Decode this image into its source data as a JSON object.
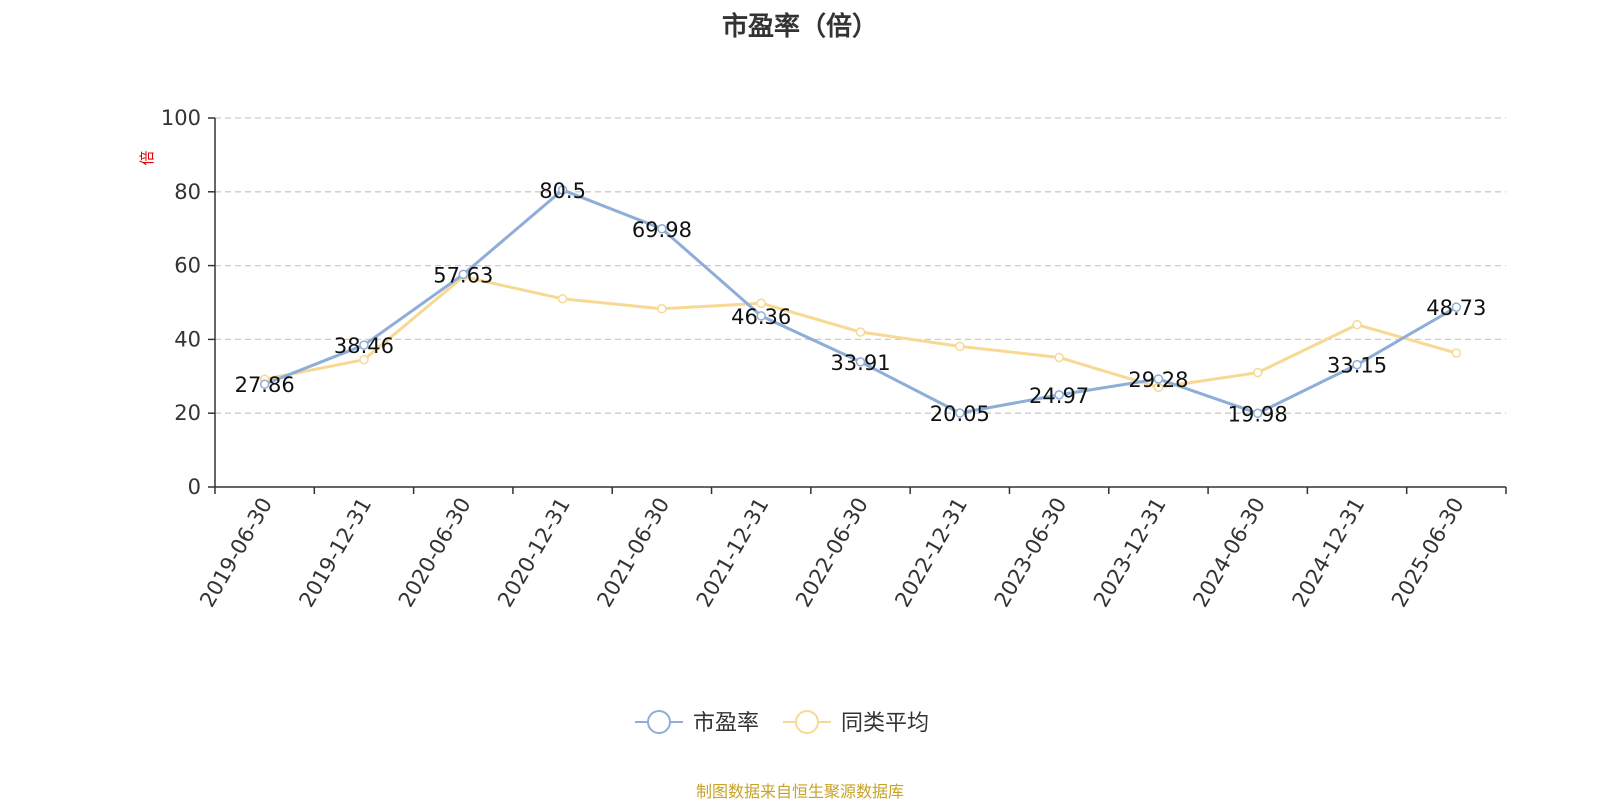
{
  "chart_data": {
    "type": "line",
    "title": "市盈率（倍）",
    "ylabel": "倍",
    "xlabel": "",
    "categories": [
      "2019-06-30",
      "2019-12-31",
      "2020-06-30",
      "2020-12-31",
      "2021-06-30",
      "2021-12-31",
      "2022-06-30",
      "2022-12-31",
      "2023-06-30",
      "2023-12-31",
      "2024-06-30",
      "2024-12-31",
      "2025-06-30"
    ],
    "ylim": [
      0,
      100
    ],
    "yticks": [
      0,
      20,
      40,
      60,
      80,
      100
    ],
    "grid": true,
    "legend_position": "bottom-center",
    "series": [
      {
        "name": "市盈率",
        "color": "#8eaed8",
        "values": [
          27.86,
          38.46,
          57.63,
          80.5,
          69.98,
          46.36,
          33.91,
          20.05,
          24.97,
          29.28,
          19.98,
          33.15,
          48.73
        ],
        "labels": [
          "27.86",
          "38.46",
          "57.63",
          "80.5",
          "69.98",
          "46.36",
          "33.91",
          "20.05",
          "24.97",
          "29.28",
          "19.98",
          "33.15",
          "48.73"
        ]
      },
      {
        "name": "同类平均",
        "color": "#f7d994",
        "values": [
          29.2,
          34.5,
          57.0,
          51.0,
          48.3,
          49.8,
          42.0,
          38.1,
          35.1,
          27.0,
          31.0,
          44.0,
          36.3
        ]
      }
    ]
  },
  "source_note": "制图数据来自恒生聚源数据库"
}
